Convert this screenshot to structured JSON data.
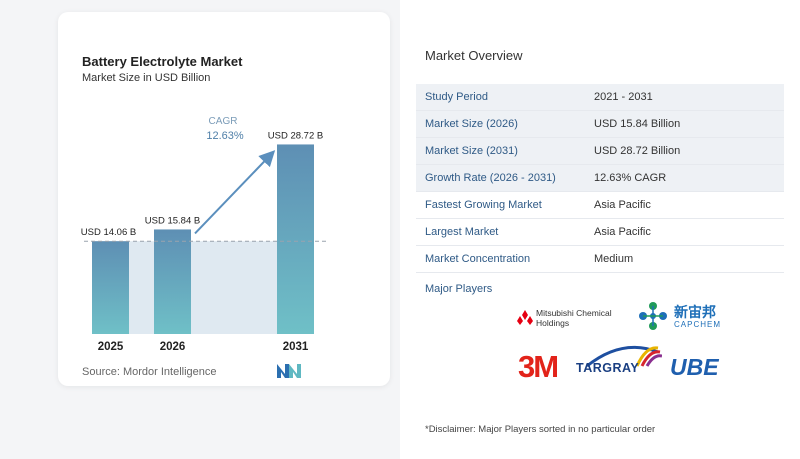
{
  "chart": {
    "title": "Battery Electrolyte Market",
    "subtitle": "Market Size in USD Billion",
    "source": "Source:  Mordor Intelligence",
    "cagr_label": "CAGR",
    "cagr_value": "12.63%"
  },
  "chart_data": {
    "type": "bar",
    "categories": [
      "2025",
      "2026",
      "2031"
    ],
    "values": [
      14.06,
      15.84,
      28.72
    ],
    "value_labels": [
      "USD 14.06 B",
      "USD 15.84 B",
      "USD 28.72 B"
    ],
    "ylim": [
      0,
      30
    ],
    "grid": false,
    "colors": {
      "bar_top": "#5e8fb4",
      "bar_bottom": "#6fc0c7",
      "baseline_band": "#dfe9f1",
      "arrow": "#5b8fbd"
    }
  },
  "overview": {
    "title": "Market Overview",
    "rows": [
      {
        "label": "Study Period",
        "value": "2021 - 2031"
      },
      {
        "label": "Market Size (2026)",
        "value": "USD 15.84 Billion"
      },
      {
        "label": "Market Size (2031)",
        "value": "USD 28.72 Billion"
      },
      {
        "label": "Growth Rate (2026 - 2031)",
        "value": "12.63% CAGR"
      },
      {
        "label": "Fastest Growing Market",
        "value": "Asia Pacific"
      },
      {
        "label": "Largest Market",
        "value": "Asia Pacific"
      },
      {
        "label": "Market Concentration",
        "value": "Medium"
      }
    ],
    "players_title": "Major Players",
    "players": {
      "mitsubishi_line1": "Mitsubishi Chemical",
      "mitsubishi_line2": "Holdings",
      "capchem_cn": "新宙邦",
      "capchem_en": "CAPCHEM",
      "threem": "3M",
      "targray": "TARGRAY",
      "ube": "UBE"
    },
    "disclaimer": "*Disclaimer: Major Players sorted in no particular order"
  }
}
